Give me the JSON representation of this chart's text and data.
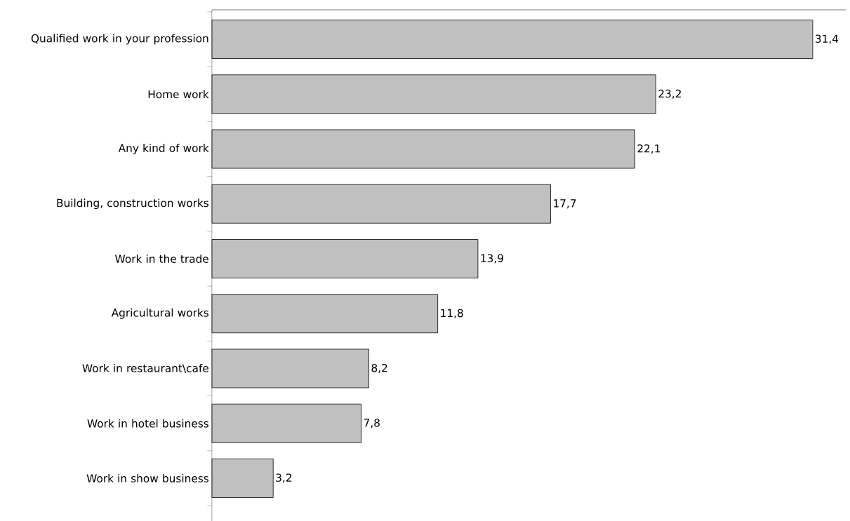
{
  "chart_data": {
    "type": "bar",
    "orientation": "horizontal",
    "color": "#c0c0c0",
    "categories": [
      "Qualified work in your profession",
      "Home work",
      "Any kind of work",
      "Building, construction works",
      "Work in the trade",
      "Agricultural works",
      "Work in restaurant\\cafe",
      "Work in hotel business",
      "Work in show business"
    ],
    "values": [
      31.4,
      23.2,
      22.1,
      17.7,
      13.9,
      11.8,
      8.2,
      7.8,
      3.2
    ],
    "value_labels": [
      "31,4",
      "23,2",
      "22,1",
      "17,7",
      "13,9",
      "11,8",
      "8,2",
      "7,8",
      "3,2"
    ]
  }
}
